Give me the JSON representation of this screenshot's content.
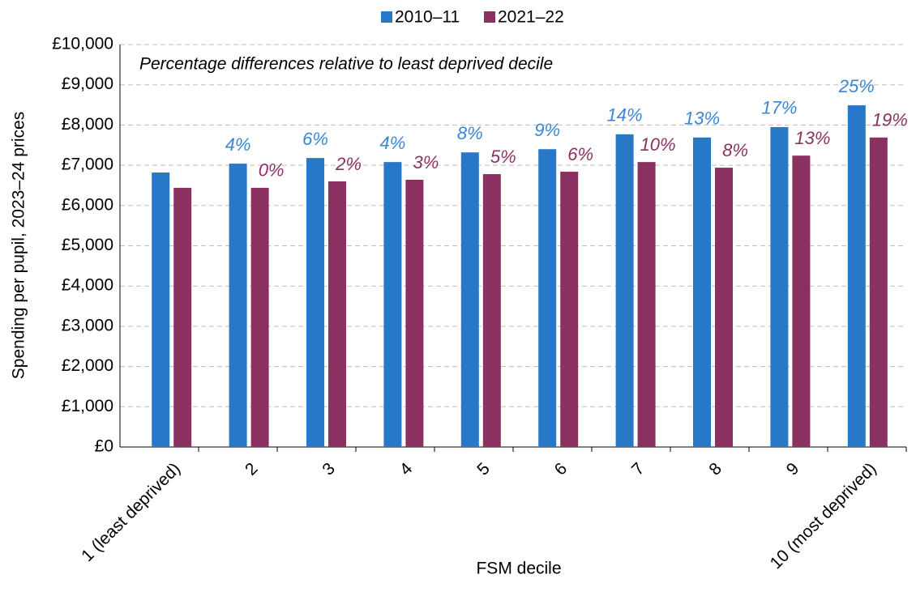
{
  "chart_data": {
    "type": "bar",
    "annotation": "Percentage differences relative to least deprived decile",
    "x_label": "FSM decile",
    "y_label": "Spending per pupil, 2023–24 prices",
    "categories": [
      "1 (least deprived)",
      "2",
      "3",
      "4",
      "5",
      "6",
      "7",
      "8",
      "9",
      "10 (most deprived)"
    ],
    "series": [
      {
        "name": "2010–11",
        "color": "#2878c8",
        "label_color": "#3a86d4",
        "values": [
          6820,
          7040,
          7180,
          7080,
          7320,
          7400,
          7770,
          7690,
          7950,
          8490
        ],
        "difference_labels": [
          null,
          "4%",
          "6%",
          "4%",
          "8%",
          "9%",
          "14%",
          "13%",
          "17%",
          "25%"
        ]
      },
      {
        "name": "2021–22",
        "color": "#8b3161",
        "label_color": "#8b3161",
        "values": [
          6440,
          6440,
          6600,
          6640,
          6780,
          6840,
          7080,
          6940,
          7240,
          7690
        ],
        "difference_labels": [
          null,
          "0%",
          "2%",
          "3%",
          "5%",
          "6%",
          "10%",
          "8%",
          "13%",
          "19%"
        ]
      }
    ],
    "ylim": [
      0,
      10000
    ],
    "yticks": [
      {
        "value": 0,
        "label": "£0"
      },
      {
        "value": 1000,
        "label": "£1,000"
      },
      {
        "value": 2000,
        "label": "£2,000"
      },
      {
        "value": 3000,
        "label": "£3,000"
      },
      {
        "value": 4000,
        "label": "£4,000"
      },
      {
        "value": 5000,
        "label": "£5,000"
      },
      {
        "value": 6000,
        "label": "£6,000"
      },
      {
        "value": 7000,
        "label": "£7,000"
      },
      {
        "value": 8000,
        "label": "£8,000"
      },
      {
        "value": 9000,
        "label": "£9,000"
      },
      {
        "value": 10000,
        "label": "£10,000"
      }
    ],
    "grid": true,
    "legend": "top"
  }
}
